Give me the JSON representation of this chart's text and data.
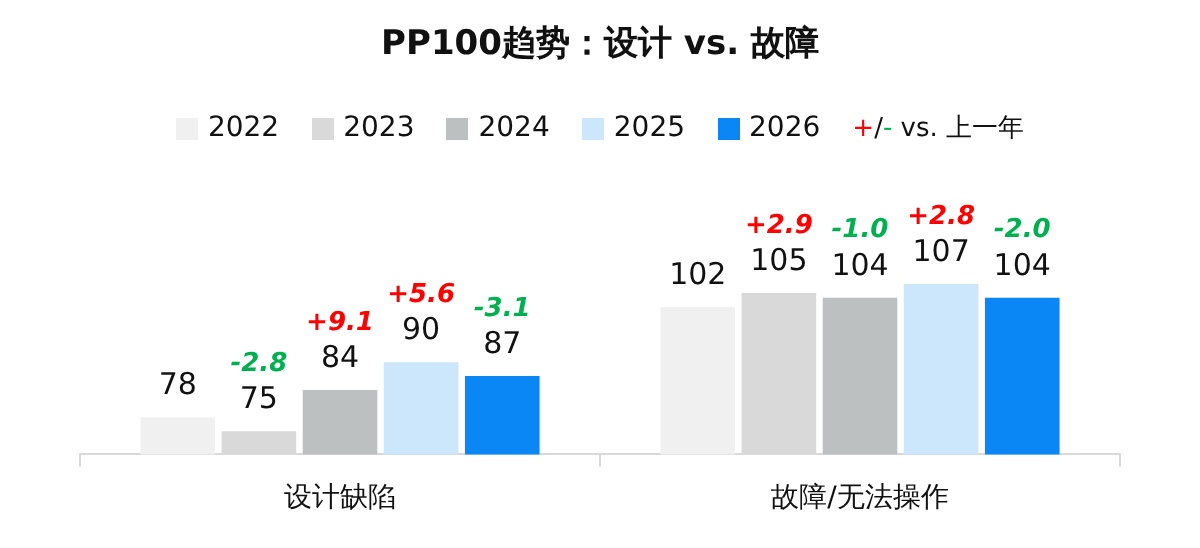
{
  "chart_data": {
    "type": "bar",
    "title": "PP100趋势：设计 vs. 故障",
    "categories": [
      "设计缺陷",
      "故障/无法操作"
    ],
    "series": [
      {
        "name": "2022",
        "color": "#f0f0f0",
        "values": [
          78,
          102
        ]
      },
      {
        "name": "2023",
        "color": "#d9d9d9",
        "values": [
          75,
          105
        ]
      },
      {
        "name": "2024",
        "color": "#bcc0c0",
        "values": [
          84,
          104
        ]
      },
      {
        "name": "2025",
        "color": "#cce6fc",
        "values": [
          90,
          107
        ]
      },
      {
        "name": "2026",
        "color": "#0a86f5",
        "values": [
          87,
          104
        ]
      }
    ],
    "data_labels": true,
    "legend": "top",
    "grid": false,
    "tick_labels": "x",
    "annotations": [
      "+/- vs. 上一年",
      "-2.8",
      "+9.1",
      "+5.6",
      "-3.1",
      "+2.9",
      "-1.0",
      "+2.8",
      "-2.0"
    ]
  }
}
